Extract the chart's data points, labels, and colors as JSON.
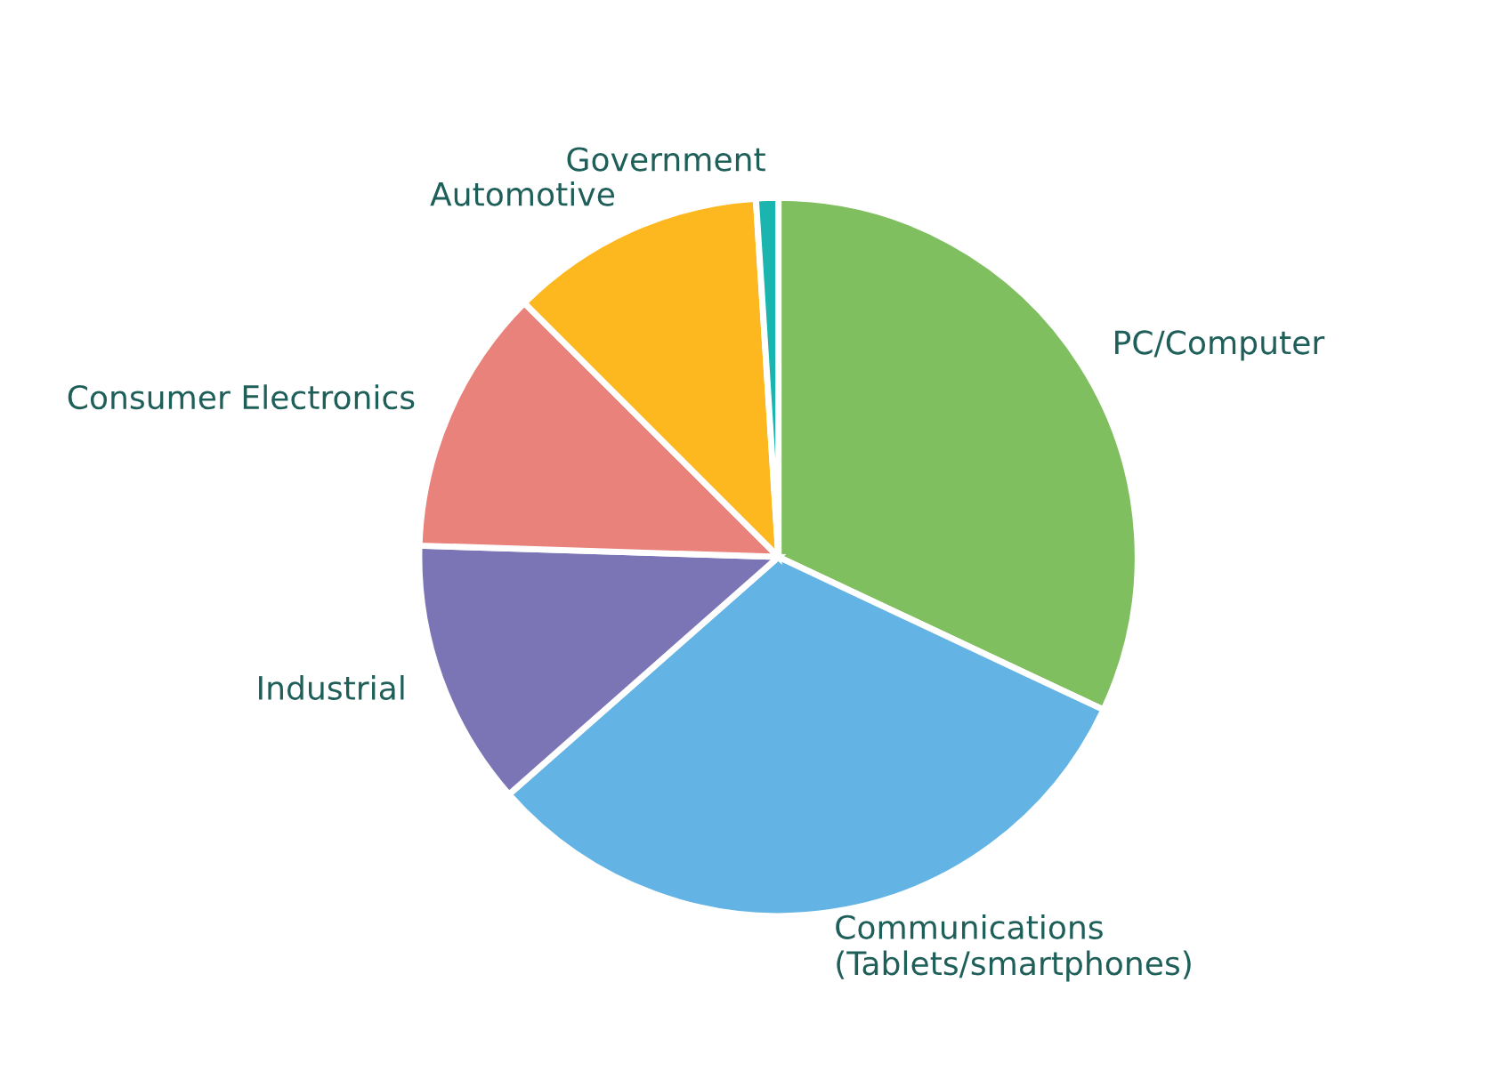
{
  "chart_data": {
    "type": "pie",
    "categories": [
      "PC/Computer",
      "Communications\n(Tablets/smartphones)",
      "Industrial",
      "Consumer Electronics",
      "Automotive",
      "Government"
    ],
    "values": [
      32,
      31.5,
      12,
      12,
      11.5,
      1
    ],
    "colors": [
      "#80bf60",
      "#63b4e4",
      "#7b75b6",
      "#e8827a",
      "#fdb71f",
      "#1bb5b0"
    ]
  }
}
